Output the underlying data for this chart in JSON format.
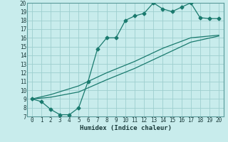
{
  "xlabel": "Humidex (Indice chaleur)",
  "xlim": [
    -0.5,
    20.5
  ],
  "ylim": [
    7,
    20
  ],
  "xticks": [
    0,
    1,
    2,
    3,
    4,
    5,
    6,
    7,
    8,
    9,
    10,
    11,
    12,
    13,
    14,
    15,
    16,
    17,
    18,
    19,
    20
  ],
  "yticks": [
    7,
    8,
    9,
    10,
    11,
    12,
    13,
    14,
    15,
    16,
    17,
    18,
    19,
    20
  ],
  "bg_color": "#c8ecec",
  "grid_color": "#9dcfcf",
  "line_color": "#1a7a6e",
  "line1_x": [
    0,
    1,
    2,
    3,
    4,
    5,
    6,
    7,
    8,
    9,
    10,
    11,
    12,
    13,
    14,
    15,
    16,
    17,
    18,
    19,
    20
  ],
  "line1_y": [
    9.0,
    8.7,
    7.8,
    7.2,
    7.2,
    8.0,
    11.0,
    14.7,
    16.0,
    16.0,
    18.0,
    18.5,
    18.8,
    20.0,
    19.3,
    19.0,
    19.5,
    20.0,
    18.3,
    18.2,
    18.2
  ],
  "line2_x": [
    0,
    2,
    5,
    8,
    11,
    14,
    17,
    20
  ],
  "line2_y": [
    9.0,
    9.2,
    9.8,
    11.2,
    12.5,
    14.0,
    15.5,
    16.2
  ],
  "line3_x": [
    0,
    2,
    5,
    8,
    11,
    14,
    17,
    20
  ],
  "line3_y": [
    9.0,
    9.5,
    10.5,
    12.0,
    13.3,
    14.8,
    16.0,
    16.3
  ]
}
